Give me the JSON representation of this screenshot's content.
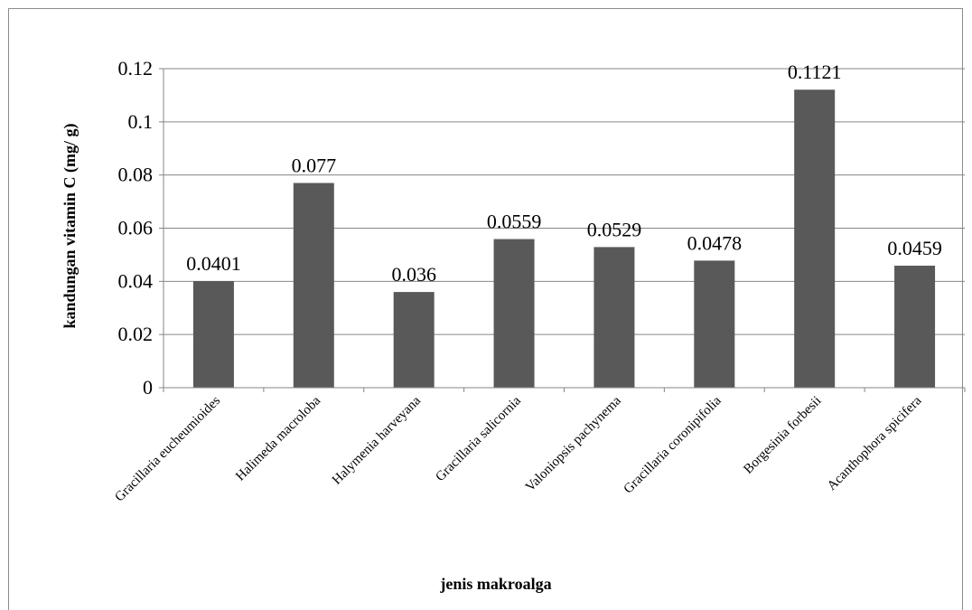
{
  "chart_data": {
    "type": "bar",
    "categories": [
      "Gracillaria eucheumioides",
      "Halimeda macroloba",
      "Halymenia harveyana",
      "Gracillaria salicornia",
      "Valoniopsis pachynema",
      "Gracillaria coronipifolia",
      "Borgesinia forbesii",
      "Acanthophora spicifera"
    ],
    "values": [
      0.0401,
      0.077,
      0.036,
      0.0559,
      0.0529,
      0.0478,
      0.1121,
      0.0459
    ],
    "value_labels": [
      "0.0401",
      "0.077",
      "0.036",
      "0.0559",
      "0.0529",
      "0.0478",
      "0.1121",
      "0.0459"
    ],
    "title": "",
    "xlabel": "jenis makroalga",
    "ylabel": "kandungan vitamin C (mg/ g)",
    "ylim": [
      0,
      0.12
    ],
    "yticks": [
      "0",
      "0.02",
      "0.04",
      "0.06",
      "0.08",
      "0.1",
      "0.12"
    ],
    "grid": true,
    "bar_color": "#595959",
    "grid_color": "#868686"
  }
}
